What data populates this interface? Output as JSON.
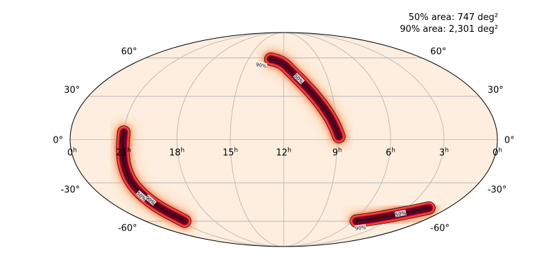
{
  "chart_data": {
    "type": "heatmap",
    "projection": "mollweide",
    "title": "",
    "annotations": {
      "area_50": "50% area: 747 deg²",
      "area_90": "90% area: 2,301 deg²"
    },
    "ra_ticks": [
      {
        "hours": 24,
        "label": "0"
      },
      {
        "hours": 21,
        "label": "21"
      },
      {
        "hours": 18,
        "label": "18"
      },
      {
        "hours": 15,
        "label": "15"
      },
      {
        "hours": 12,
        "label": "12"
      },
      {
        "hours": 9,
        "label": "9"
      },
      {
        "hours": 6,
        "label": "6"
      },
      {
        "hours": 3,
        "label": "3"
      },
      {
        "hours": 0,
        "label": "0"
      }
    ],
    "ra_tick_unit": "h",
    "dec_ticks": [
      {
        "deg": 60,
        "label": "60°"
      },
      {
        "deg": 30,
        "label": "30°"
      },
      {
        "deg": 0,
        "label": "0°"
      },
      {
        "deg": -30,
        "label": "-30°"
      },
      {
        "deg": -60,
        "label": "-60°"
      }
    ],
    "contour_levels": [
      "50%",
      "90%"
    ],
    "colormap": [
      "#fff5eb",
      "#fdbf8a",
      "#f4442e",
      "#c0003a",
      "#6b0026",
      "#2a0a10"
    ],
    "grid": true,
    "probability_regions": [
      {
        "ra_hours": [
          13.1,
          12.6,
          12.0,
          11.4,
          10.6,
          9.9,
          9.4,
          9.1,
          8.9
        ],
        "dec_deg": [
          59,
          58,
          55,
          48,
          38,
          27,
          17,
          9,
          2
        ],
        "peak": 1.0
      },
      {
        "ra_hours": [
          21.0,
          21.1,
          21.3,
          21.4,
          21.2,
          20.6
        ],
        "dec_deg": [
          5,
          -5,
          -20,
          -33,
          -47,
          -60
        ],
        "peak": 1.0
      },
      {
        "ra_hours": [
          5.7,
          4.7,
          3.5,
          2.3,
          1.4
        ],
        "dec_deg": [
          -60,
          -58.5,
          -55.5,
          -52,
          -49
        ],
        "peak": 0.95
      }
    ]
  }
}
